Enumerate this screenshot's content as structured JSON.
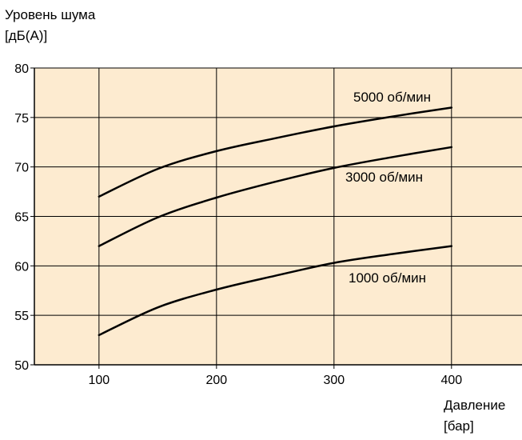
{
  "chart_data": {
    "type": "line",
    "title": "",
    "ylabel_line1": "Уровень шума",
    "ylabel_line2": "[дБ(А)]",
    "xlabel_line1": "Давление",
    "xlabel_line2": "[бар]",
    "xlim": [
      45,
      460
    ],
    "ylim": [
      50,
      80
    ],
    "x_ticks": [
      100,
      200,
      300,
      400
    ],
    "x_tick_labels": [
      "100",
      "200",
      "300",
      "400"
    ],
    "y_ticks": [
      50,
      55,
      60,
      65,
      70,
      75,
      80
    ],
    "y_tick_labels": [
      "50",
      "55",
      "60",
      "65",
      "70",
      "75",
      "80"
    ],
    "grid": true,
    "legend": "none",
    "colors": {
      "plot_background": "#fdebd0",
      "line": "#000000",
      "grid": "#000000",
      "text": "#000000"
    },
    "series": [
      {
        "name": "5000 об/мин",
        "x": [
          100,
          150,
          200,
          250,
          300,
          350,
          400
        ],
        "y": [
          67.0,
          69.8,
          71.6,
          72.9,
          74.1,
          75.1,
          76.0
        ]
      },
      {
        "name": "3000 об/мин",
        "x": [
          100,
          150,
          200,
          250,
          300,
          350,
          400
        ],
        "y": [
          62.0,
          64.9,
          66.9,
          68.5,
          69.9,
          71.0,
          72.0
        ]
      },
      {
        "name": "1000 об/мин",
        "x": [
          100,
          150,
          200,
          250,
          300,
          350,
          400
        ],
        "y": [
          53.0,
          55.8,
          57.6,
          59.0,
          60.3,
          61.2,
          62.0
        ]
      }
    ]
  }
}
